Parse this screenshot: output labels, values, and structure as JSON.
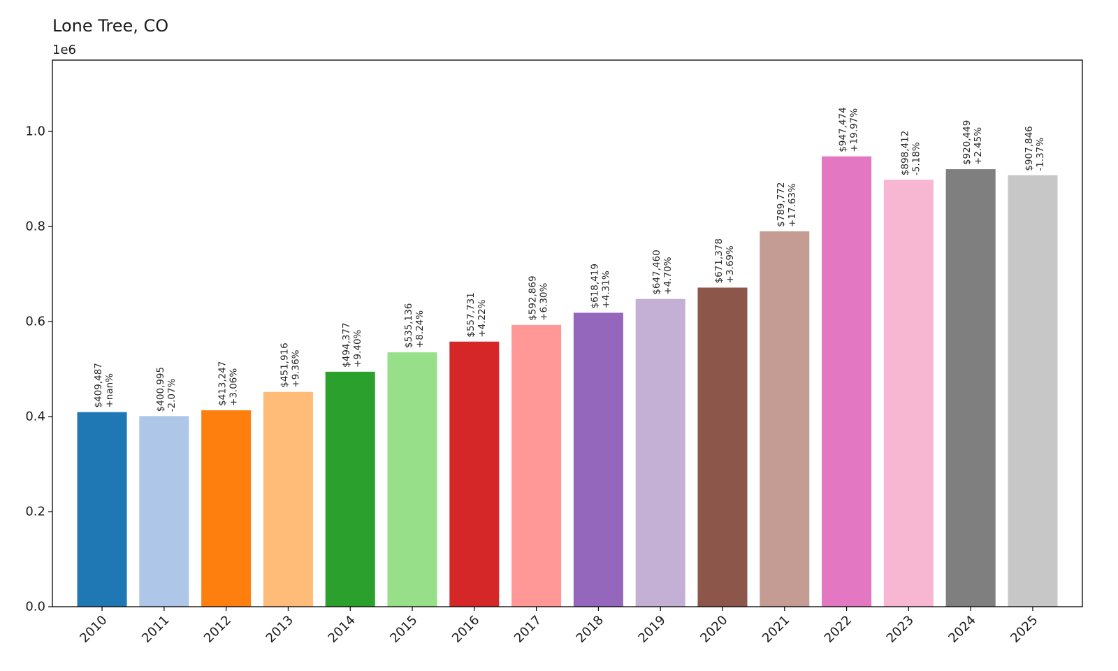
{
  "chart_data": {
    "type": "bar",
    "title": "Lone Tree, CO",
    "xlabel": "",
    "ylabel": "",
    "y_offset_label": "1e6",
    "ylim": [
      0,
      1150000
    ],
    "yticks": [
      0,
      200000,
      400000,
      600000,
      800000,
      1000000
    ],
    "ytick_labels": [
      "0.0",
      "0.2",
      "0.4",
      "0.6",
      "0.8",
      "1.0"
    ],
    "grid": false,
    "categories": [
      "2010",
      "2011",
      "2012",
      "2013",
      "2014",
      "2015",
      "2016",
      "2017",
      "2018",
      "2019",
      "2020",
      "2021",
      "2022",
      "2023",
      "2024",
      "2025"
    ],
    "values": [
      409487,
      400995,
      413247,
      451916,
      494377,
      535136,
      557731,
      592869,
      618419,
      647460,
      671378,
      789772,
      947474,
      898412,
      920449,
      907846
    ],
    "value_labels": [
      "$409,487",
      "$400,995",
      "$413,247",
      "$451,916",
      "$494,377",
      "$535,136",
      "$557,731",
      "$592,869",
      "$618,419",
      "$647,460",
      "$671,378",
      "$789,772",
      "$947,474",
      "$898,412",
      "$920,449",
      "$907,846"
    ],
    "change_labels": [
      "+nan%",
      "-2.07%",
      "+3.06%",
      "+9.36%",
      "+9.40%",
      "+8.24%",
      "+4.22%",
      "+6.30%",
      "+4.31%",
      "+4.70%",
      "+3.69%",
      "+17.63%",
      "+19.97%",
      "-5.18%",
      "+2.45%",
      "-1.37%"
    ],
    "colors": [
      "#1f77b4",
      "#aec7e8",
      "#ff7f0e",
      "#ffbb78",
      "#2ca02c",
      "#98df8a",
      "#d62728",
      "#ff9896",
      "#9467bd",
      "#c5b0d5",
      "#8c564b",
      "#c49c94",
      "#e377c2",
      "#f7b6d2",
      "#7f7f7f",
      "#c7c7c7"
    ]
  }
}
